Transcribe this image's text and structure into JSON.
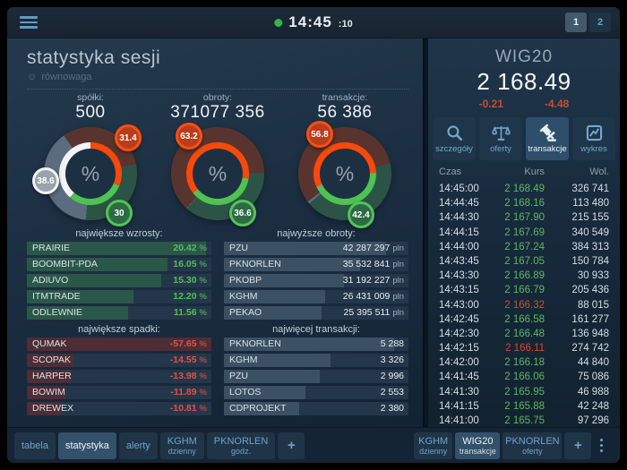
{
  "topbar": {
    "time": "14:45",
    "seconds": ":10",
    "status_color": "#35b44a",
    "pages": [
      {
        "label": "1",
        "active": true
      },
      {
        "label": "2",
        "active": false
      }
    ]
  },
  "session": {
    "title": "statystyka sesji",
    "mood_icon": "☺",
    "mood_label": "równowaga",
    "stats": [
      {
        "label": "spółki:",
        "value": "500"
      },
      {
        "label": "obroty:",
        "value": "371077 356"
      },
      {
        "label": "transakcje:",
        "value": "56 386"
      }
    ]
  },
  "donut_colors": {
    "red": {
      "bright": "#f8490a",
      "muted": "#59342e"
    },
    "green": {
      "bright": "#4fc351",
      "muted": "#2c5446"
    },
    "white": {
      "bright": "#f2f4f5",
      "muted": "#5a6c7e"
    },
    "slate": {
      "bright": "#8094a5",
      "muted": "#5a6c7e"
    }
  },
  "donuts": [
    {
      "id": "spolki",
      "center_label": "%",
      "inner_start": 0,
      "outer_start": -35,
      "segments": [
        {
          "value": 31.4,
          "label": "31.4",
          "kind": "red"
        },
        {
          "value": 30,
          "label": "30",
          "kind": "green"
        },
        {
          "value": 38.6,
          "label": "38.6",
          "kind": "white"
        }
      ]
    },
    {
      "id": "obroty",
      "center_label": "%",
      "inner_start": 232,
      "outer_start": 222,
      "segments": [
        {
          "value": 63.2,
          "label": "63.2",
          "kind": "red"
        },
        {
          "value": 36.6,
          "label": "36.6",
          "kind": "green"
        },
        {
          "value": 0.2,
          "kind": "slate"
        }
      ]
    },
    {
      "id": "transakcje",
      "center_label": "%",
      "inner_start": 245,
      "outer_start": 233,
      "segments": [
        {
          "value": 56.8,
          "label": "56.8",
          "kind": "red"
        },
        {
          "value": 42.4,
          "label": "42.4",
          "kind": "green"
        },
        {
          "value": 0.8,
          "kind": "slate"
        }
      ]
    }
  ],
  "mini_tables": [
    {
      "id": "wzrosty",
      "title": "największe wzrosty:",
      "tone": "up",
      "rows": [
        {
          "name": "PRAIRIE",
          "value": "20.42",
          "unit": "%",
          "bar": 97
        },
        {
          "name": "BOOMBIT-PDA",
          "value": "16.05",
          "unit": "%",
          "bar": 76
        },
        {
          "name": "ADIUVO",
          "value": "15.30",
          "unit": "%",
          "bar": 73
        },
        {
          "name": "ITMTRADE",
          "value": "12.20",
          "unit": "%",
          "bar": 58
        },
        {
          "name": "ODLEWNIE",
          "value": "11.56",
          "unit": "%",
          "bar": 55
        }
      ]
    },
    {
      "id": "obroty",
      "title": "najwyższe obroty:",
      "tone": "neutral",
      "rows": [
        {
          "name": "PZU",
          "value": "42 287 297",
          "unit": "pln",
          "bar": 88
        },
        {
          "name": "PKNORLEN",
          "value": "35 532 841",
          "unit": "pln",
          "bar": 74
        },
        {
          "name": "PKOBP",
          "value": "31 192 227",
          "unit": "pln",
          "bar": 65
        },
        {
          "name": "KGHM",
          "value": "26 431 009",
          "unit": "pln",
          "bar": 55
        },
        {
          "name": "PEKAO",
          "value": "25 395 511",
          "unit": "pln",
          "bar": 53
        }
      ]
    },
    {
      "id": "spadki",
      "title": "największe spadki:",
      "tone": "down",
      "rows": [
        {
          "name": "QUMAK",
          "value": "-57.65",
          "unit": "%",
          "bar": 100
        },
        {
          "name": "SCOPAK",
          "value": "-14.55",
          "unit": "%",
          "bar": 25
        },
        {
          "name": "HARPER",
          "value": "-13.98",
          "unit": "%",
          "bar": 24
        },
        {
          "name": "BOWIM",
          "value": "-11.89",
          "unit": "%",
          "bar": 21
        },
        {
          "name": "DREWEX",
          "value": "-10.81",
          "unit": "%",
          "bar": 19
        }
      ]
    },
    {
      "id": "transakcje",
      "title": "najwięcej transakcji:",
      "tone": "neutral",
      "rows": [
        {
          "name": "PKNORLEN",
          "value": "5 288",
          "unit": "",
          "bar": 92
        },
        {
          "name": "KGHM",
          "value": "3 326",
          "unit": "",
          "bar": 58
        },
        {
          "name": "PZU",
          "value": "2 996",
          "unit": "",
          "bar": 52
        },
        {
          "name": "LOTOS",
          "value": "2 553",
          "unit": "",
          "bar": 44
        },
        {
          "name": "CDPROJEKT",
          "value": "2 380",
          "unit": "",
          "bar": 41
        }
      ]
    }
  ],
  "wig20": {
    "name": "WIG20",
    "value": "2 168.49",
    "change": "-0.21",
    "change_points": "-4.48",
    "views": [
      {
        "label": "szczegóły",
        "icon": "search"
      },
      {
        "label": "oferty",
        "icon": "scales"
      },
      {
        "label": "transakcje",
        "icon": "gavel",
        "active": true
      },
      {
        "label": "wykres",
        "icon": "chart"
      }
    ],
    "columns": [
      "Czas",
      "Kurs",
      "Wol."
    ],
    "rows": [
      [
        "14:45:00",
        "2 168.49",
        "326 741",
        "up"
      ],
      [
        "14:44:45",
        "2 168.16",
        "113 480",
        "up"
      ],
      [
        "14:44:30",
        "2 167.90",
        "215 155",
        "up"
      ],
      [
        "14:44:15",
        "2 167.69",
        "340 549",
        "up"
      ],
      [
        "14:44:00",
        "2 167.24",
        "384 313",
        "up"
      ],
      [
        "14:43:45",
        "2 167.05",
        "150 784",
        "up"
      ],
      [
        "14:43:30",
        "2 166.89",
        "30 933",
        "up"
      ],
      [
        "14:43:15",
        "2 166.79",
        "205 436",
        "up"
      ],
      [
        "14:43:00",
        "2 166.32",
        "88 015",
        "down"
      ],
      [
        "14:42:45",
        "2 166.58",
        "161 277",
        "up"
      ],
      [
        "14:42:30",
        "2 166.48",
        "136 948",
        "up"
      ],
      [
        "14:42:15",
        "2 166.11",
        "274 742",
        "down"
      ],
      [
        "14:42:00",
        "2 166.18",
        "44 840",
        "up"
      ],
      [
        "14:41:45",
        "2 166.06",
        "75 086",
        "up"
      ],
      [
        "14:41:30",
        "2 165.95",
        "46 988",
        "up"
      ],
      [
        "14:41:15",
        "2 165.88",
        "42 248",
        "up"
      ],
      [
        "14:41:00",
        "2 165.75",
        "97 296",
        "up"
      ]
    ]
  },
  "bottom_tabs": {
    "left": [
      {
        "label": "tabela"
      },
      {
        "label": "statystyka",
        "active": true
      },
      {
        "label": "alerty"
      },
      {
        "label": "KGHM",
        "sub": "dzienny"
      },
      {
        "label": "PKNORLEN",
        "sub": "godz."
      }
    ],
    "left_add": "+",
    "right": [
      {
        "label": "KGHM",
        "sub": "dzienny"
      },
      {
        "label": "WIG20",
        "sub": "transakcje",
        "active": true
      },
      {
        "label": "PKNORLEN",
        "sub": "oferty"
      }
    ],
    "right_add": "+"
  }
}
